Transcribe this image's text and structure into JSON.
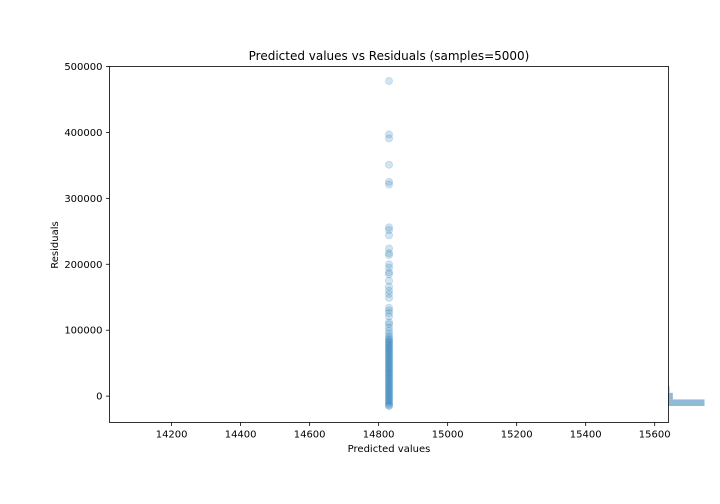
{
  "chart_data": {
    "type": "scatter",
    "title": "Predicted values vs Residuals (samples=5000)",
    "xlabel": "Predicted values",
    "ylabel": "Residuals",
    "xlim": [
      14020,
      15640
    ],
    "ylim": [
      -40000,
      500000
    ],
    "xticks": [
      14200,
      14400,
      14600,
      14800,
      15000,
      15200,
      15400,
      15600
    ],
    "yticks": [
      0,
      100000,
      200000,
      300000,
      400000,
      500000
    ],
    "grid": false,
    "point_color": "#1f77b4",
    "point_alpha": 0.2,
    "predicted_value": 14830,
    "residuals": [
      478000,
      397000,
      391000,
      351000,
      325000,
      321000,
      256000,
      252000,
      244000,
      224000,
      217000,
      214000,
      200000,
      195000,
      188000,
      185000,
      175000,
      166000,
      160000,
      155000,
      149000,
      134000,
      130000,
      126000,
      121000,
      112000,
      109000,
      104000,
      99000,
      95000,
      91000,
      88000,
      86000,
      84000,
      82000,
      80000,
      78000,
      76000,
      74000,
      72000,
      70000,
      68000,
      66000,
      64000,
      62000,
      60000,
      58000,
      56000,
      54000,
      52000,
      50000,
      48000,
      46000,
      44000,
      42000,
      40000,
      38000,
      36000,
      34000,
      32000,
      30000,
      28000,
      26000,
      24000,
      22000,
      20000,
      18000,
      16000,
      14000,
      12000,
      10000,
      8000,
      6000,
      4000,
      2000,
      0,
      -2000,
      -4000,
      -6000,
      -8000,
      -10000,
      -12000,
      -14000,
      -15000
    ],
    "residual_histogram": {
      "orientation": "horizontal",
      "color": "#1f77b4",
      "alpha": 0.5,
      "bins": [
        {
          "from": -15000,
          "to": -5000,
          "count": 1650
        },
        {
          "from": -5000,
          "to": 5000,
          "count": 200
        },
        {
          "from": 5000,
          "to": 15000,
          "count": 45
        },
        {
          "from": 15000,
          "to": 25000,
          "count": 10
        }
      ]
    }
  }
}
